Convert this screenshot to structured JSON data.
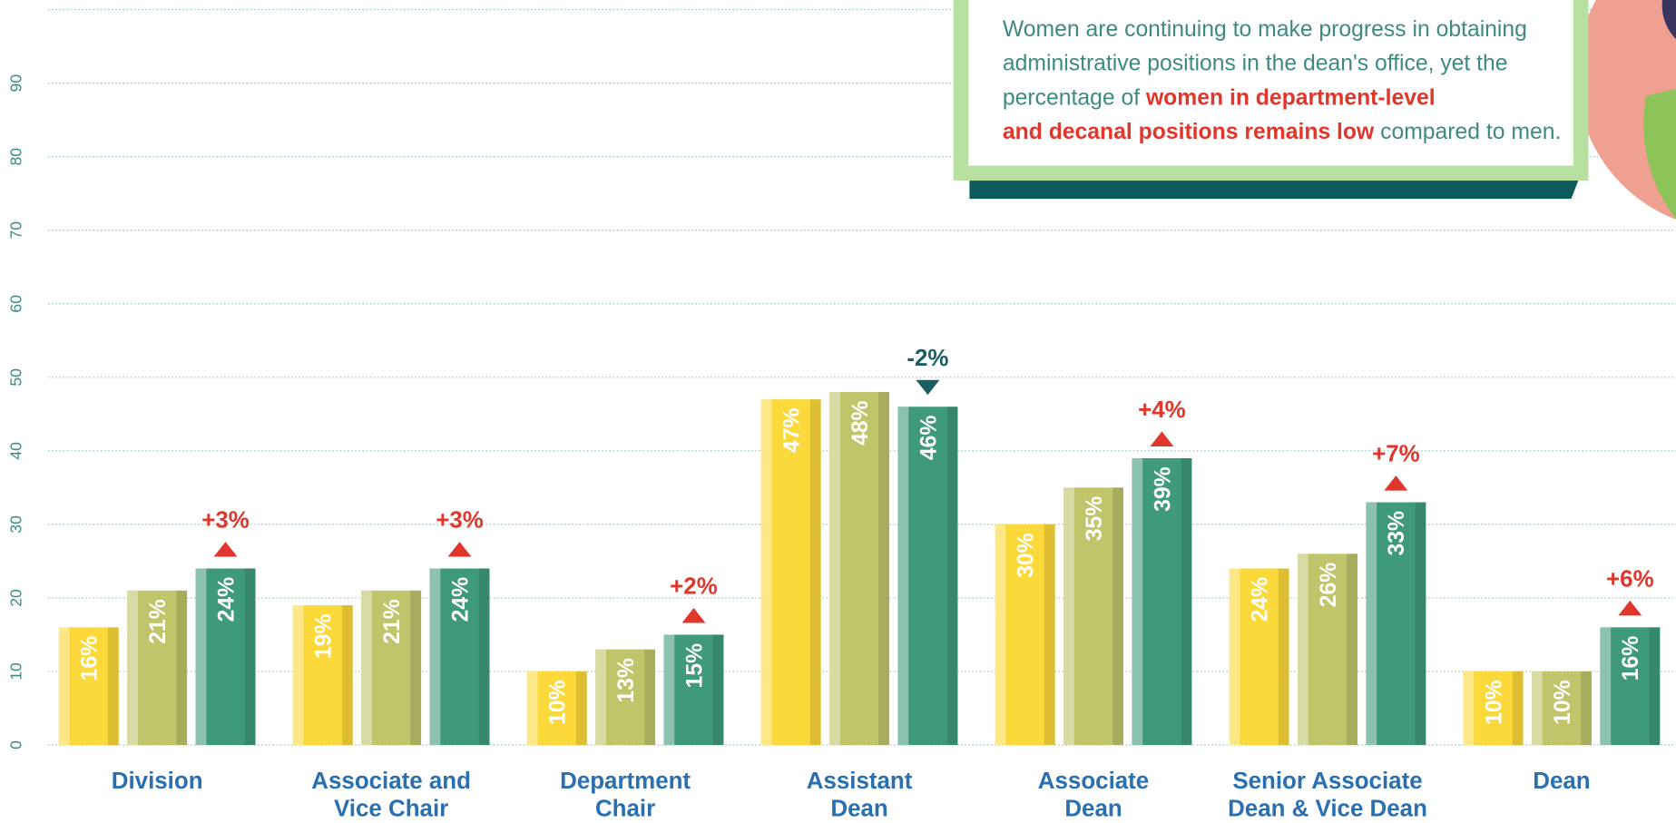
{
  "chart_data": {
    "type": "bar",
    "categories": [
      [
        "Division"
      ],
      [
        "Associate and",
        "Vice Chair"
      ],
      [
        "Department",
        "Chair"
      ],
      [
        "Assistant",
        "Dean"
      ],
      [
        "Associate",
        "Dean"
      ],
      [
        "Senior Associate",
        "Dean & Vice Dean"
      ],
      [
        "Dean"
      ]
    ],
    "series": [
      {
        "color": "#fcd93a",
        "values": [
          16,
          19,
          10,
          47,
          30,
          24,
          10
        ],
        "value_labels": [
          "16%",
          "19%",
          "10%",
          "47%",
          "30%",
          "24%",
          "10%"
        ]
      },
      {
        "color": "#c0c46a",
        "values": [
          21,
          21,
          13,
          48,
          35,
          26,
          10
        ],
        "value_labels": [
          "21%",
          "21%",
          "13%",
          "48%",
          "35%",
          "26%",
          "10%"
        ]
      },
      {
        "color": "#3e9a7a",
        "values": [
          24,
          24,
          15,
          46,
          39,
          33,
          16
        ],
        "value_labels": [
          "24%",
          "24%",
          "15%",
          "46%",
          "39%",
          "33%",
          "16%"
        ]
      }
    ],
    "changes": [
      3,
      3,
      2,
      -2,
      4,
      7,
      6
    ],
    "change_labels": [
      "+3%",
      "+3%",
      "+2%",
      "-2%",
      "+4%",
      "+7%",
      "+6%"
    ],
    "up_color": "#e0362c",
    "down_color": "#1b5e63",
    "ylim": [
      0,
      100
    ],
    "yticks": [
      0,
      10,
      20,
      30,
      40,
      50,
      60,
      70,
      80,
      90
    ],
    "grid": true,
    "note": {
      "before": "Women are continuing to make progress in obtaining administrative positions in the dean's office, yet the percentage of",
      "emphasis": "women in department-level and decanal positions remains low",
      "after": "compared to men."
    }
  }
}
